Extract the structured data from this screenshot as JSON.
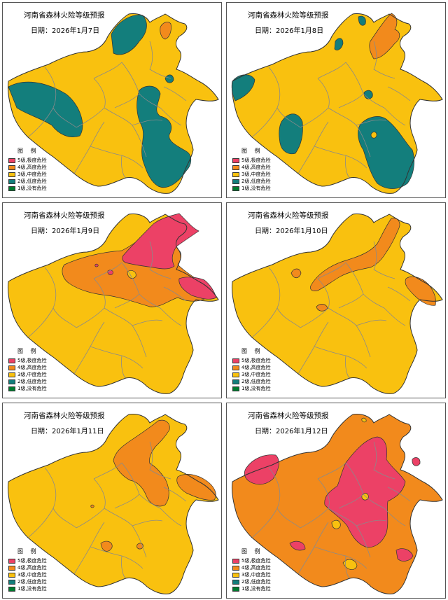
{
  "colors": {
    "level5": "#EC4166",
    "level4": "#F28A1C",
    "level3": "#F9C10F",
    "level2": "#137E7C",
    "level1": "#007A2F",
    "border": "#333333",
    "internal_border": "#8a8a8a"
  },
  "panels": [
    {
      "title": "河南省森林火险等级预报",
      "date_label": "日期：",
      "date": "2026年1月7日",
      "base_level": "level3"
    },
    {
      "title": "河南省森林火险等级预报",
      "date_label": "日期：",
      "date": "2026年1月8日",
      "base_level": "level3"
    },
    {
      "title": "河南省森林火险等级预报",
      "date_label": "日期：",
      "date": "2026年1月9日",
      "base_level": "level3"
    },
    {
      "title": "河南省森林火险等级预报",
      "date_label": "日期：",
      "date": "2026年1月10日",
      "base_level": "level3"
    },
    {
      "title": "河南省森林火险等级预报",
      "date_label": "日期：",
      "date": "2026年1月11日",
      "base_level": "level3"
    },
    {
      "title": "河南省森林火险等级预报",
      "date_label": "日期：",
      "date": "2026年1月12日",
      "base_level": "level4"
    }
  ],
  "legend": {
    "title": "图 例",
    "items": [
      {
        "label": "5级,极度危险",
        "color_key": "level5"
      },
      {
        "label": "4级,高度危险",
        "color_key": "level4"
      },
      {
        "label": "3级,中度危险",
        "color_key": "level3"
      },
      {
        "label": "2级,低度危险",
        "color_key": "level2"
      },
      {
        "label": "1级,没有危险",
        "color_key": "level1"
      }
    ]
  }
}
